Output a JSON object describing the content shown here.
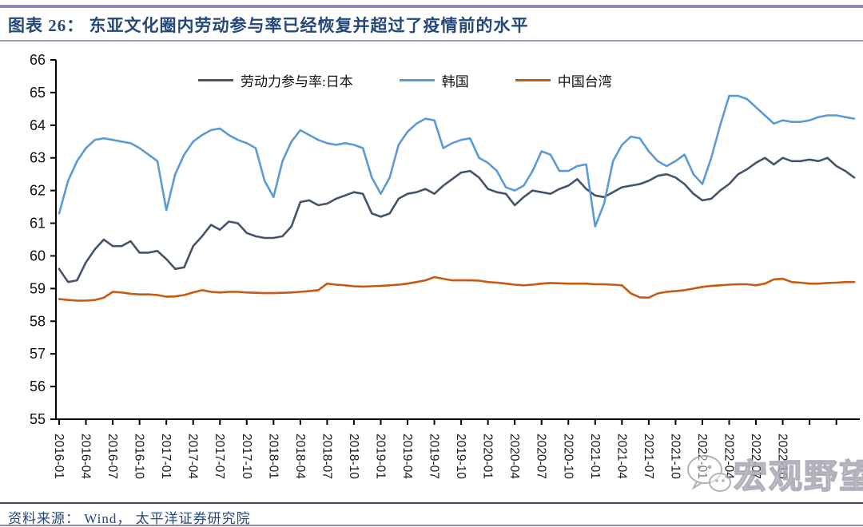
{
  "header": {
    "title": "图表 26：  东亚文化圈内劳动参与率已经恢复并超过了疫情前的水平"
  },
  "footer": {
    "source": "资料来源：  Wind，  太平洋证券研究院"
  },
  "watermark": {
    "icon": "wechat-icon",
    "text": "宏观野望"
  },
  "chart_data": {
    "type": "line",
    "title": "东亚文化圈内劳动参与率已经恢复并超过了疫情前的水平",
    "xlabel": "",
    "ylabel": "",
    "ylim": [
      55,
      66
    ],
    "y_ticks": [
      55,
      56,
      57,
      58,
      59,
      60,
      61,
      62,
      63,
      64,
      65,
      66
    ],
    "grid": false,
    "legend_position": "top",
    "x_monthly_start": "2016-01",
    "x_tick_labels": [
      "2016-01",
      "2016-04",
      "2016-07",
      "2016-10",
      "2017-01",
      "2017-04",
      "2017-07",
      "2017-10",
      "2018-01",
      "2018-04",
      "2018-07",
      "2018-10",
      "2019-01",
      "2019-04",
      "2019-07",
      "2019-10",
      "2020-01",
      "2020-04",
      "2020-07",
      "2020-10",
      "2021-01",
      "2021-04",
      "2021-07",
      "2021-10",
      "2022-01",
      "2022-04",
      "2022-07",
      "2022-10"
    ],
    "series": [
      {
        "name": "劳动力参与率:日本",
        "color": "#44546A",
        "values": [
          59.6,
          59.2,
          59.25,
          59.8,
          60.2,
          60.5,
          60.3,
          60.3,
          60.45,
          60.1,
          60.1,
          60.15,
          59.9,
          59.6,
          59.65,
          60.3,
          60.6,
          60.95,
          60.8,
          61.05,
          61.0,
          60.7,
          60.6,
          60.55,
          60.55,
          60.6,
          60.9,
          61.65,
          61.7,
          61.55,
          61.6,
          61.75,
          61.85,
          61.95,
          61.9,
          61.3,
          61.2,
          61.3,
          61.75,
          61.9,
          61.95,
          62.05,
          61.9,
          62.15,
          62.35,
          62.55,
          62.6,
          62.4,
          62.05,
          61.95,
          61.9,
          61.55,
          61.8,
          62.0,
          61.95,
          61.9,
          62.05,
          62.15,
          62.35,
          62.05,
          61.85,
          61.8,
          61.95,
          62.1,
          62.15,
          62.2,
          62.3,
          62.45,
          62.5,
          62.4,
          62.2,
          61.9,
          61.7,
          61.75,
          62.0,
          62.2,
          62.5,
          62.65,
          62.85,
          63.0,
          62.8,
          63.0,
          62.9,
          62.9,
          62.95,
          62.9,
          63.0,
          62.75,
          62.6,
          62.4
        ]
      },
      {
        "name": "韩国",
        "color": "#5B9BD5",
        "values": [
          61.3,
          62.3,
          62.9,
          63.3,
          63.55,
          63.6,
          63.55,
          63.5,
          63.45,
          63.3,
          63.1,
          62.9,
          61.4,
          62.5,
          63.1,
          63.5,
          63.7,
          63.85,
          63.9,
          63.7,
          63.55,
          63.45,
          63.3,
          62.3,
          61.8,
          62.9,
          63.5,
          63.85,
          63.7,
          63.55,
          63.45,
          63.4,
          63.45,
          63.4,
          63.3,
          62.4,
          61.9,
          62.4,
          63.4,
          63.8,
          64.05,
          64.2,
          64.15,
          63.3,
          63.45,
          63.55,
          63.6,
          63.0,
          62.85,
          62.6,
          62.1,
          62.0,
          62.15,
          62.6,
          63.2,
          63.1,
          62.6,
          62.6,
          62.75,
          62.8,
          60.9,
          61.6,
          62.9,
          63.4,
          63.65,
          63.6,
          63.2,
          62.9,
          62.75,
          62.9,
          63.1,
          62.5,
          62.2,
          63.0,
          64.0,
          64.9,
          64.9,
          64.8,
          64.55,
          64.3,
          64.05,
          64.15,
          64.1,
          64.1,
          64.15,
          64.25,
          64.3,
          64.3,
          64.25,
          64.2
        ]
      },
      {
        "name": "中国台湾",
        "color": "#C55A11",
        "values": [
          58.68,
          58.65,
          58.63,
          58.63,
          58.65,
          58.72,
          58.9,
          58.88,
          58.84,
          58.82,
          58.82,
          58.8,
          58.75,
          58.76,
          58.8,
          58.88,
          58.95,
          58.9,
          58.88,
          58.9,
          58.9,
          58.88,
          58.87,
          58.86,
          58.86,
          58.87,
          58.88,
          58.9,
          58.92,
          58.95,
          59.15,
          59.12,
          59.1,
          59.07,
          59.06,
          59.07,
          59.08,
          59.1,
          59.12,
          59.15,
          59.2,
          59.25,
          59.35,
          59.3,
          59.25,
          59.25,
          59.25,
          59.24,
          59.2,
          59.18,
          59.15,
          59.12,
          59.1,
          59.12,
          59.15,
          59.17,
          59.16,
          59.15,
          59.15,
          59.15,
          59.13,
          59.13,
          59.12,
          59.1,
          58.85,
          58.73,
          58.72,
          58.85,
          58.9,
          58.92,
          58.95,
          59.0,
          59.05,
          59.08,
          59.1,
          59.12,
          59.13,
          59.13,
          59.1,
          59.15,
          59.28,
          59.3,
          59.2,
          59.18,
          59.15,
          59.15,
          59.17,
          59.18,
          59.2,
          59.2
        ]
      }
    ]
  }
}
